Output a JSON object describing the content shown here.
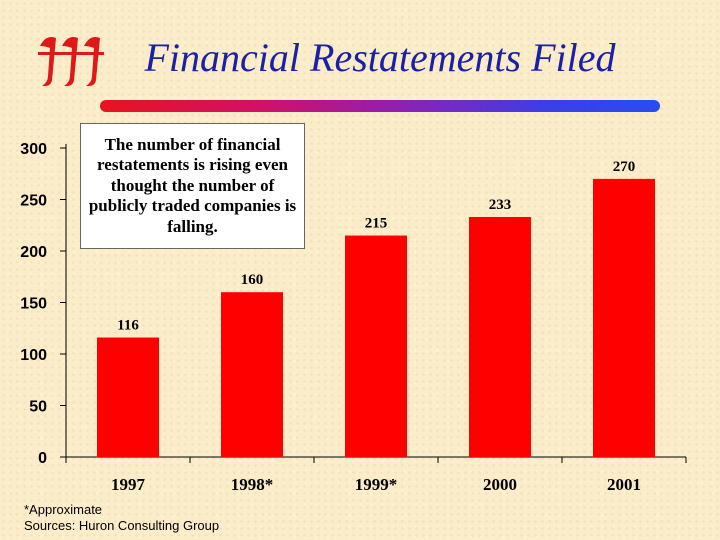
{
  "header": {
    "logo_icon": "huron-iii-logo-icon",
    "title": "Financial Restatements Filed"
  },
  "colors": {
    "bar": "#ff0000",
    "title": "#1a20a8",
    "rule_start": "#e8131e",
    "rule_end": "#2a4cf2"
  },
  "annotation": {
    "text": "The number of financial restatements is rising even thought the number of publicly traded companies is falling."
  },
  "footnote": {
    "line1": "*Approximate",
    "line2": "Sources: Huron Consulting Group"
  },
  "chart_data": {
    "type": "bar",
    "categories": [
      "1997",
      "1998*",
      "1999*",
      "2000",
      "2001"
    ],
    "values": [
      116,
      160,
      215,
      233,
      270
    ],
    "data_labels": [
      "116",
      "160",
      "215",
      "233",
      "270"
    ],
    "yticks": [
      0,
      50,
      100,
      150,
      200,
      250,
      300
    ],
    "ylim": [
      0,
      300
    ],
    "grid": false,
    "legend": "none"
  }
}
